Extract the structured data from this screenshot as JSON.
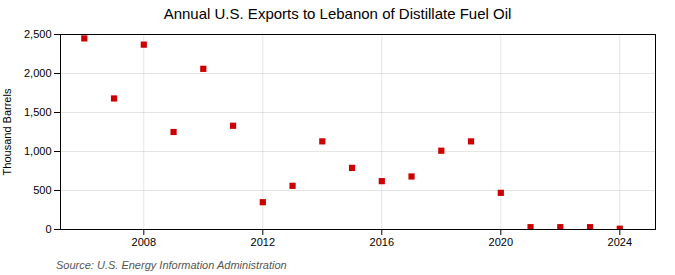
{
  "chart_data": {
    "type": "scatter",
    "title": "Annual U.S. Exports to Lebanon of Distillate Fuel Oil",
    "ylabel": "Thousand Barrels",
    "source": "Source: U.S. Energy Information Administration",
    "x": [
      2006,
      2007,
      2008,
      2009,
      2010,
      2011,
      2012,
      2013,
      2014,
      2015,
      2016,
      2017,
      2018,
      2019,
      2020,
      2021,
      2022,
      2023,
      2024
    ],
    "values": [
      2450,
      1680,
      2370,
      1250,
      2060,
      1330,
      350,
      560,
      1130,
      790,
      620,
      680,
      1010,
      1130,
      470,
      30,
      30,
      30,
      10
    ],
    "color": "#cc0000",
    "marker": "square",
    "xlim": [
      2005.2,
      2025.2
    ],
    "xticks": [
      2008,
      2012,
      2016,
      2020,
      2024
    ],
    "ylim": [
      0,
      2500
    ],
    "yticks": [
      0,
      500,
      {
        "value": 1000,
        "label": "1,000"
      },
      {
        "value": 1500,
        "label": "1,500"
      },
      {
        "value": 2000,
        "label": "2,000"
      },
      {
        "value": 2500,
        "label": "2,500"
      }
    ],
    "grid": true
  }
}
